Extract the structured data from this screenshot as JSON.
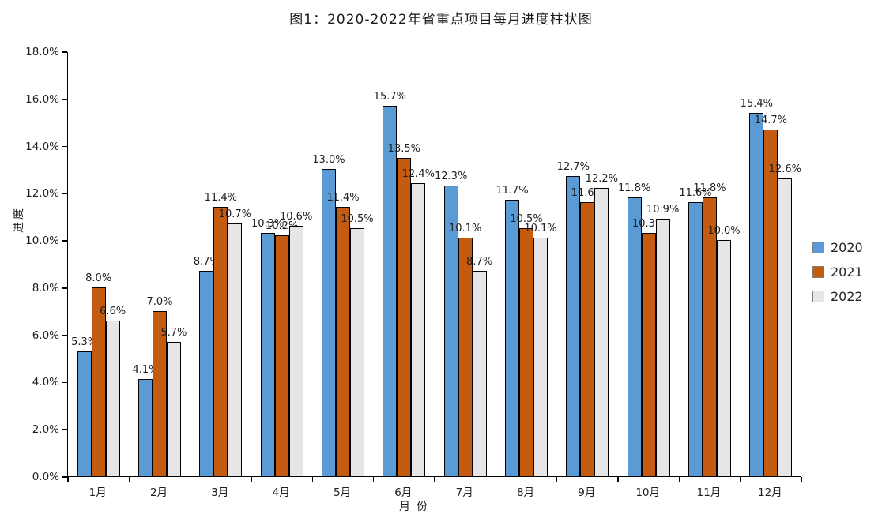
{
  "chart_data": {
    "type": "bar",
    "title": "图1：2020-2022年省重点项目每月进度柱状图",
    "xlabel": "月份",
    "ylabel": "进度",
    "categories": [
      "1月",
      "2月",
      "3月",
      "4月",
      "5月",
      "6月",
      "7月",
      "8月",
      "9月",
      "10月",
      "11月",
      "12月"
    ],
    "series": [
      {
        "name": "2020",
        "color": "#5B9BD5",
        "values": [
          5.3,
          4.1,
          8.7,
          10.3,
          13.0,
          15.7,
          12.3,
          11.7,
          12.7,
          11.8,
          11.6,
          15.4
        ]
      },
      {
        "name": "2021",
        "color": "#C55A11",
        "values": [
          8.0,
          7.0,
          11.4,
          10.2,
          11.4,
          13.5,
          10.1,
          10.5,
          11.6,
          10.3,
          11.8,
          14.7
        ]
      },
      {
        "name": "2022",
        "color": "#E7E6E6",
        "values": [
          6.6,
          5.7,
          10.7,
          10.6,
          10.5,
          12.4,
          8.7,
          10.1,
          12.2,
          10.9,
          10.0,
          12.6
        ]
      }
    ],
    "value_suffix": "%",
    "value_decimals": 1,
    "ylim": [
      0,
      18
    ],
    "ytick_step": 2,
    "ytick_labels": [
      "0.0%",
      "2.0%",
      "4.0%",
      "6.0%",
      "8.0%",
      "10.0%",
      "12.0%",
      "14.0%",
      "16.0%",
      "18.0%"
    ],
    "grid": "off",
    "legend_position": "right",
    "bar_outline_color": "#000000",
    "axis_color": "#000000",
    "background_color": "#FFFFFF"
  }
}
